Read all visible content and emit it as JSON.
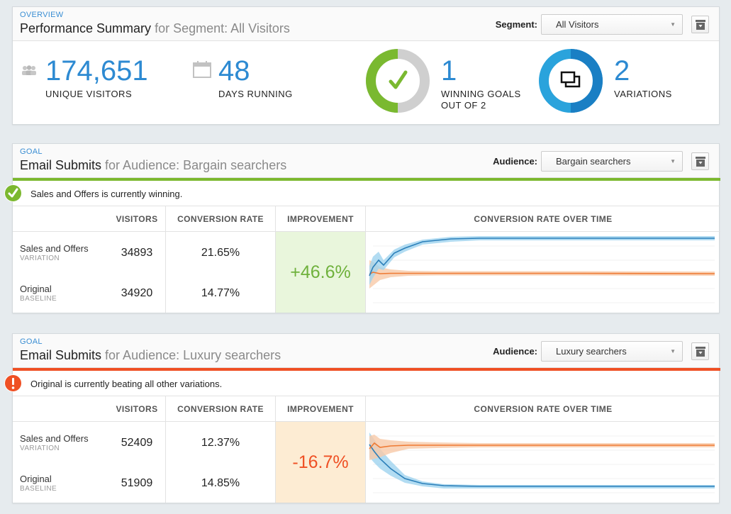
{
  "overview": {
    "eyebrow": "OVERVIEW",
    "title_main": "Performance Summary",
    "title_muted": "for Segment: All Visitors",
    "segment_label": "Segment:",
    "segment_value": "All Visitors",
    "stats": {
      "visitors_value": "174,651",
      "visitors_label": "UNIQUE VISITORS",
      "days_value": "48",
      "days_label": "DAYS RUNNING",
      "winning_value": "1",
      "winning_label_1": "WINNING GOALS",
      "winning_label_2": "OUT OF 2",
      "winning_fraction": 0.5,
      "variations_value": "2",
      "variations_label": "VARIATIONS"
    }
  },
  "goals": [
    {
      "eyebrow": "GOAL",
      "title_main": "Email Submits",
      "title_muted": "for Audience: Bargain searchers",
      "audience_label": "Audience:",
      "audience_value": "Bargain searchers",
      "status_text": "Sales and Offers is currently winning.",
      "status_color": "#7cb82f",
      "headers": [
        "VISITORS",
        "CONVERSION RATE",
        "IMPROVEMENT",
        "CONVERSION RATE OVER TIME"
      ],
      "rows": [
        {
          "name": "Sales and Offers",
          "sub": "VARIATION",
          "visitors": "34893",
          "rate": "21.65%"
        },
        {
          "name": "Original",
          "sub": "BASELINE",
          "visitors": "34920",
          "rate": "14.77%"
        }
      ],
      "improvement": "+46.6%",
      "improvement_color": "#6fb13c",
      "improvement_bg": "#e9f6dc"
    },
    {
      "eyebrow": "GOAL",
      "title_main": "Email Submits",
      "title_muted": "for Audience: Luxury searchers",
      "audience_label": "Audience:",
      "audience_value": "Luxury searchers",
      "status_text": "Original is currently beating all other variations.",
      "status_color": "#ef5024",
      "headers": [
        "VISITORS",
        "CONVERSION RATE",
        "IMPROVEMENT",
        "CONVERSION RATE OVER TIME"
      ],
      "rows": [
        {
          "name": "Sales and Offers",
          "sub": "VARIATION",
          "visitors": "52409",
          "rate": "12.37%"
        },
        {
          "name": "Original",
          "sub": "BASELINE",
          "visitors": "51909",
          "rate": "14.85%"
        }
      ],
      "improvement": "-16.7%",
      "improvement_color": "#ef5024",
      "improvement_bg": "#fdecd3"
    }
  ],
  "colors": {
    "accent_blue": "#2d8ad2",
    "variation_blue": "#2b8fcc",
    "baseline_orange": "#f08a4b"
  }
}
